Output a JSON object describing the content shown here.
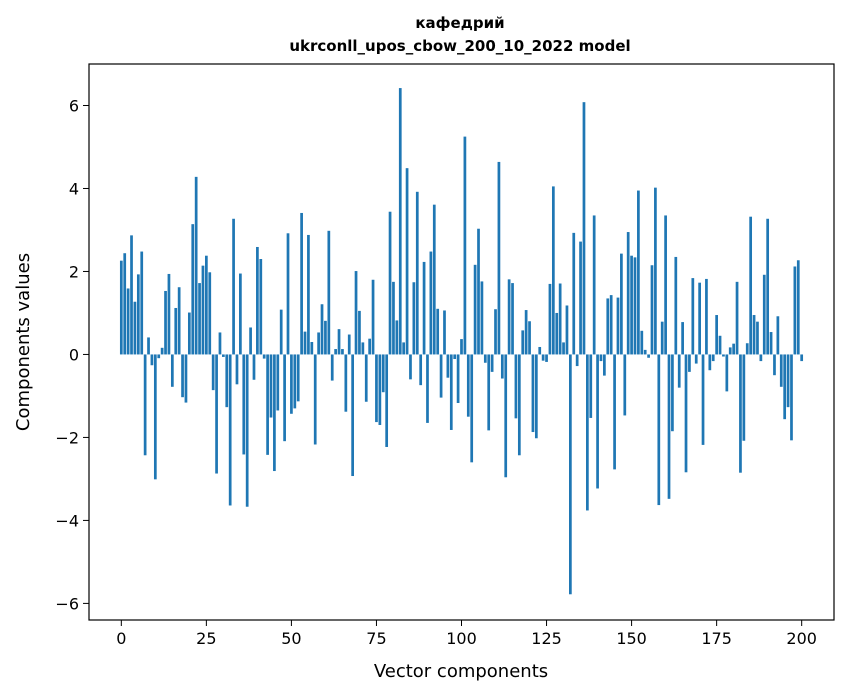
{
  "chart_data": {
    "type": "bar",
    "title_line1": "кафедрий",
    "title_line2": "ukrconll_upos_cbow_200_10_2022 model",
    "xlabel": "Vector components",
    "ylabel": "Components values",
    "xlim": [
      -9.5,
      209.5
    ],
    "ylim": [
      -6.4,
      7.0
    ],
    "xticks": [
      0,
      25,
      50,
      75,
      100,
      125,
      150,
      175,
      200
    ],
    "xtick_labels": [
      "0",
      "25",
      "50",
      "75",
      "100",
      "125",
      "150",
      "175",
      "200"
    ],
    "yticks": [
      -6,
      -4,
      -2,
      0,
      2,
      4,
      6
    ],
    "ytick_labels": [
      "−6",
      "−4",
      "−2",
      "0",
      "2",
      "4",
      "6"
    ],
    "grid": false,
    "bar_color": "#1f77b4",
    "values": [
      2.26,
      2.44,
      1.59,
      2.87,
      1.27,
      1.93,
      2.48,
      -2.43,
      0.41,
      -0.26,
      -3.01,
      -0.09,
      0.16,
      1.53,
      1.94,
      -0.78,
      1.12,
      1.62,
      -1.03,
      -1.16,
      1.01,
      3.14,
      4.28,
      1.72,
      2.14,
      2.38,
      1.98,
      -0.86,
      -2.87,
      0.53,
      -0.06,
      -1.27,
      -3.64,
      3.27,
      -0.72,
      1.95,
      -2.41,
      -3.67,
      0.65,
      -0.61,
      2.59,
      2.3,
      -0.1,
      -2.42,
      -1.52,
      -2.81,
      -1.35,
      1.08,
      -2.09,
      2.92,
      -1.43,
      -1.3,
      -1.13,
      3.41,
      0.55,
      2.88,
      0.3,
      -2.17,
      0.53,
      1.21,
      0.81,
      2.98,
      -0.63,
      0.13,
      0.61,
      0.13,
      -1.38,
      0.48,
      -2.93,
      2.01,
      1.05,
      0.29,
      -1.14,
      0.38,
      1.8,
      -1.63,
      -1.7,
      -0.91,
      -2.23,
      3.44,
      1.75,
      0.82,
      6.42,
      0.29,
      4.49,
      -0.6,
      1.74,
      3.92,
      -0.74,
      2.23,
      -1.65,
      2.48,
      3.61,
      1.1,
      -1.04,
      1.06,
      -0.56,
      -1.82,
      -0.11,
      -1.17,
      0.37,
      5.25,
      -1.5,
      -2.6,
      2.16,
      3.03,
      1.76,
      -0.2,
      -1.83,
      -0.42,
      1.09,
      4.64,
      -0.58,
      -2.96,
      1.81,
      1.72,
      -1.54,
      -2.43,
      0.58,
      1.07,
      0.8,
      -1.87,
      -2.02,
      0.18,
      -0.15,
      -0.18,
      1.7,
      4.05,
      1.0,
      1.71,
      0.29,
      1.18,
      -5.78,
      2.93,
      -0.28,
      2.72,
      6.08,
      -3.76,
      -1.53,
      3.35,
      -3.23,
      -0.16,
      -0.51,
      1.35,
      1.43,
      -2.77,
      1.37,
      2.43,
      -1.47,
      2.95,
      2.38,
      2.34,
      3.95,
      0.57,
      0.11,
      -0.08,
      2.15,
      4.02,
      -3.63,
      0.79,
      3.35,
      -3.48,
      -1.85,
      2.35,
      -0.8,
      0.78,
      -2.84,
      -0.42,
      1.84,
      -0.22,
      1.73,
      -2.18,
      1.82,
      -0.38,
      -0.16,
      0.95,
      0.45,
      -0.05,
      -0.89,
      0.17,
      0.26,
      1.75,
      -2.85,
      -2.08,
      0.27,
      3.32,
      0.95,
      0.79,
      -0.16,
      1.92,
      3.27,
      0.54,
      -0.5,
      0.92,
      -0.78,
      -1.56,
      -1.27,
      -2.07,
      2.12,
      2.27,
      -0.16
    ]
  }
}
